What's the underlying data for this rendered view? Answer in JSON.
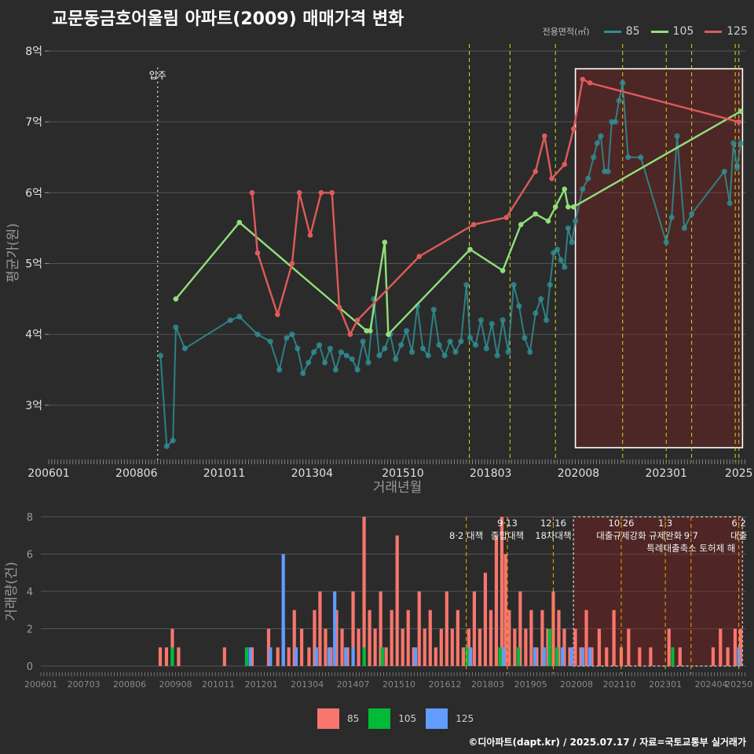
{
  "title": "교문동금호어울림 아파트(2009) 매매가격 변화",
  "legend": {
    "label": "전용면적(㎡)",
    "items": [
      {
        "name": "85",
        "color": "#2f8f93"
      },
      {
        "name": "105",
        "color": "#90e07a"
      },
      {
        "name": "125",
        "color": "#e05a5a"
      }
    ]
  },
  "bar_legend": [
    {
      "name": "85",
      "color": "#f8766d"
    },
    {
      "name": "105",
      "color": "#00ba38"
    },
    {
      "name": "125",
      "color": "#619cff"
    }
  ],
  "footer": "©디아파트(dapt.kr) / 2025.07.17 / 자료=국토교통부 실거래가",
  "chart_data": [
    {
      "type": "line",
      "title": "교문동금호어울림 아파트(2009) 매매가격 변화",
      "xlabel": "거래년월",
      "ylabel": "평균가(원)",
      "xlim": [
        2006.0,
        2025.2
      ],
      "ylim": [
        2.2,
        8.1
      ],
      "xticks": [
        {
          "value": 2006.0,
          "label": "200601"
        },
        {
          "value": 2008.417,
          "label": "200806"
        },
        {
          "value": 2010.833,
          "label": "201011"
        },
        {
          "value": 2013.25,
          "label": "201304"
        },
        {
          "value": 2015.75,
          "label": "201510"
        },
        {
          "value": 2018.167,
          "label": "201803"
        },
        {
          "value": 2020.583,
          "label": "202008"
        },
        {
          "value": 2023.0,
          "label": "202301"
        },
        {
          "value": 2025.0,
          "label": "2025"
        }
      ],
      "yticks": [
        {
          "value": 3,
          "label": "3억"
        },
        {
          "value": 4,
          "label": "4억"
        },
        {
          "value": 5,
          "label": "5억"
        },
        {
          "value": 6,
          "label": "6억"
        },
        {
          "value": 7,
          "label": "7억"
        },
        {
          "value": 8,
          "label": "8억"
        }
      ],
      "event_line": {
        "x": 2009.0,
        "label": "입주"
      },
      "policy_lines": [
        2017.58,
        2018.7,
        2019.95,
        2021.8,
        2023.0,
        2023.7,
        2024.9,
        2025.0
      ],
      "highlight": {
        "x_start": 2020.5,
        "x_end": 2025.1,
        "y_start": 2.4,
        "y_end": 7.75
      },
      "series": [
        {
          "name": "85",
          "color": "#2f8f93",
          "x": [
            2009.08,
            2009.25,
            2009.42,
            2009.5,
            2009.75,
            2011.0,
            2011.25,
            2011.75,
            2012.1,
            2012.35,
            2012.55,
            2012.7,
            2012.85,
            2013.0,
            2013.15,
            2013.3,
            2013.45,
            2013.6,
            2013.75,
            2013.9,
            2014.05,
            2014.2,
            2014.35,
            2014.5,
            2014.65,
            2014.8,
            2014.95,
            2015.1,
            2015.25,
            2015.4,
            2015.55,
            2015.7,
            2015.85,
            2016.0,
            2016.15,
            2016.3,
            2016.45,
            2016.6,
            2016.75,
            2016.9,
            2017.05,
            2017.2,
            2017.35,
            2017.5,
            2017.6,
            2017.75,
            2017.9,
            2018.05,
            2018.2,
            2018.35,
            2018.5,
            2018.65,
            2018.8,
            2018.95,
            2019.1,
            2019.25,
            2019.4,
            2019.55,
            2019.7,
            2019.8,
            2019.9,
            2020.0,
            2020.1,
            2020.2,
            2020.3,
            2020.4,
            2020.5,
            2020.7,
            2020.85,
            2021.0,
            2021.1,
            2021.2,
            2021.3,
            2021.4,
            2021.5,
            2021.6,
            2021.7,
            2021.8,
            2021.95,
            2022.3,
            2023.0,
            2023.15,
            2023.3,
            2023.5,
            2023.7,
            2024.6,
            2024.75,
            2024.85,
            2024.95,
            2025.05
          ],
          "values": [
            3.7,
            2.42,
            2.5,
            4.1,
            3.8,
            4.2,
            4.25,
            4.0,
            3.9,
            3.5,
            3.95,
            4.0,
            3.8,
            3.45,
            3.6,
            3.75,
            3.85,
            3.6,
            3.8,
            3.5,
            3.75,
            3.7,
            3.65,
            3.5,
            3.9,
            3.6,
            4.5,
            3.7,
            3.8,
            4.0,
            3.65,
            3.85,
            4.05,
            3.75,
            4.4,
            3.8,
            3.7,
            4.35,
            3.85,
            3.7,
            3.9,
            3.75,
            3.9,
            4.7,
            3.95,
            3.85,
            4.2,
            3.8,
            4.15,
            3.7,
            4.2,
            3.75,
            4.7,
            4.4,
            3.95,
            3.75,
            4.3,
            4.5,
            4.2,
            4.7,
            5.15,
            5.2,
            5.05,
            4.95,
            5.5,
            5.3,
            5.6,
            6.05,
            6.2,
            6.5,
            6.7,
            6.8,
            6.3,
            6.3,
            7.0,
            7.0,
            7.3,
            7.55,
            6.5,
            6.5,
            5.3,
            5.65,
            6.8,
            5.5,
            5.7,
            6.3,
            5.85,
            6.7,
            6.35,
            6.7
          ]
        },
        {
          "name": "105",
          "color": "#90e07a",
          "x": [
            2009.5,
            2011.25,
            2014.75,
            2014.85,
            2015.25,
            2015.35,
            2017.6,
            2018.5,
            2019.0,
            2019.4,
            2019.75,
            2019.95,
            2020.2,
            2020.3,
            2020.45,
            2025.05
          ],
          "values": [
            4.5,
            5.58,
            4.05,
            4.05,
            5.3,
            4.0,
            5.2,
            4.9,
            5.55,
            5.7,
            5.6,
            5.8,
            6.05,
            5.8,
            5.8,
            7.15
          ]
        },
        {
          "name": "125",
          "color": "#e05a5a",
          "x": [
            2011.6,
            2011.75,
            2012.3,
            2012.7,
            2012.9,
            2013.2,
            2013.5,
            2013.8,
            2014.0,
            2014.3,
            2014.5,
            2016.2,
            2017.7,
            2018.6,
            2019.4,
            2019.65,
            2019.85,
            2020.2,
            2020.45,
            2020.7,
            2020.9,
            2025.0
          ],
          "values": [
            6.0,
            5.15,
            4.28,
            5.0,
            6.0,
            5.4,
            6.0,
            6.0,
            4.38,
            4.0,
            4.2,
            5.1,
            5.55,
            5.65,
            6.3,
            6.8,
            6.2,
            6.4,
            6.9,
            7.6,
            7.55,
            7.0
          ]
        }
      ]
    },
    {
      "type": "bar",
      "ylabel": "거래량(건)",
      "xlim": [
        2006.0,
        2025.2
      ],
      "ylim": [
        0,
        8
      ],
      "xticks": [
        {
          "value": 2006.0,
          "label": "200601"
        },
        {
          "value": 2007.167,
          "label": "200703"
        },
        {
          "value": 2008.417,
          "label": "200806"
        },
        {
          "value": 2009.667,
          "label": "200908"
        },
        {
          "value": 2010.833,
          "label": "201011"
        },
        {
          "value": 2012.0,
          "label": "201201"
        },
        {
          "value": 2013.25,
          "label": "201304"
        },
        {
          "value": 2014.5,
          "label": "201407"
        },
        {
          "value": 2015.75,
          "label": "201510"
        },
        {
          "value": 2017.0,
          "label": "201612"
        },
        {
          "value": 2018.167,
          "label": "201803"
        },
        {
          "value": 2019.333,
          "label": "201905"
        },
        {
          "value": 2020.583,
          "label": "202008"
        },
        {
          "value": 2021.75,
          "label": "202110"
        },
        {
          "value": 2023.0,
          "label": "202301"
        },
        {
          "value": 2024.25,
          "label": "202404"
        },
        {
          "value": 2025.0,
          "label": "20250"
        }
      ],
      "yticks": [
        0,
        2,
        4,
        6,
        8
      ],
      "policies": [
        {
          "x": 2017.58,
          "label": "8·2 대책",
          "row": 2
        },
        {
          "x": 2018.7,
          "label": "9·13",
          "row": 1
        },
        {
          "x": 2018.7,
          "label": "종합대책",
          "row": 2
        },
        {
          "x": 2019.95,
          "label": "12·16",
          "row": 1
        },
        {
          "x": 2019.95,
          "label": "18차대책",
          "row": 2
        },
        {
          "x": 2021.8,
          "label": "10·26",
          "row": 1
        },
        {
          "x": 2021.8,
          "label": "대출규제강화",
          "row": 2
        },
        {
          "x": 2023.0,
          "label": "1·3",
          "row": 1
        },
        {
          "x": 2023.0,
          "label": "규제완화",
          "row": 2
        },
        {
          "x": 2023.7,
          "label": "9·7",
          "row": 2
        },
        {
          "x": 2023.7,
          "label": "특례대출축소 토허제 해",
          "row": 3
        },
        {
          "x": 2025.0,
          "label": "6·2",
          "row": 1
        },
        {
          "x": 2025.0,
          "label": "대출",
          "row": 2
        }
      ],
      "highlight": {
        "x_start": 2020.5,
        "x_end": 2025.1
      },
      "series": [
        {
          "name": "85",
          "color": "#f8766d",
          "x": [
            2009.25,
            2009.42,
            2009.58,
            2009.75,
            2011.0,
            2011.75,
            2012.2,
            2012.45,
            2012.6,
            2012.75,
            2012.9,
            2013.1,
            2013.3,
            2013.45,
            2013.6,
            2013.75,
            2013.9,
            2014.05,
            2014.2,
            2014.35,
            2014.5,
            2014.65,
            2014.8,
            2014.95,
            2015.1,
            2015.25,
            2015.4,
            2015.55,
            2015.7,
            2015.85,
            2016.0,
            2016.15,
            2016.3,
            2016.45,
            2016.6,
            2016.75,
            2016.9,
            2017.05,
            2017.2,
            2017.35,
            2017.5,
            2017.65,
            2017.8,
            2017.95,
            2018.1,
            2018.25,
            2018.4,
            2018.55,
            2018.65,
            2018.75,
            2018.9,
            2019.05,
            2019.2,
            2019.35,
            2019.5,
            2019.65,
            2019.8,
            2019.95,
            2020.1,
            2020.25,
            2020.4,
            2020.55,
            2020.7,
            2020.85,
            2021.0,
            2021.2,
            2021.4,
            2021.6,
            2021.8,
            2022.0,
            2022.3,
            2022.6,
            2023.1,
            2023.4,
            2024.3,
            2024.5,
            2024.7,
            2024.9,
            2025.05
          ],
          "values": [
            1,
            1,
            2,
            1,
            1,
            1,
            2,
            1,
            2,
            1,
            3,
            2,
            1,
            3,
            4,
            2,
            1,
            3,
            2,
            1,
            4,
            2,
            8,
            3,
            2,
            4,
            1,
            3,
            7,
            2,
            3,
            1,
            4,
            2,
            3,
            1,
            2,
            4,
            2,
            3,
            1,
            2,
            4,
            2,
            5,
            3,
            7,
            8,
            6,
            3,
            2,
            4,
            2,
            3,
            1,
            3,
            2,
            4,
            3,
            2,
            1,
            2,
            1,
            3,
            1,
            2,
            1,
            3,
            1,
            2,
            1,
            1,
            2,
            1,
            1,
            2,
            1,
            2,
            2
          ]
        },
        {
          "name": "105",
          "color": "#00ba38",
          "x": [
            2009.58,
            2011.6,
            2014.8,
            2015.3,
            2017.6,
            2018.5,
            2019.0,
            2019.85,
            2020.05,
            2023.2
          ],
          "values": [
            1,
            1,
            1,
            1,
            1,
            1,
            1,
            2,
            1,
            1
          ]
        },
        {
          "name": "125",
          "color": "#619cff",
          "x": [
            2011.7,
            2012.25,
            2012.6,
            2012.95,
            2013.5,
            2013.85,
            2014.0,
            2014.3,
            2014.5,
            2016.2,
            2017.7,
            2018.6,
            2019.45,
            2019.7,
            2020.2,
            2020.45,
            2020.75,
            2020.95,
            2025.0
          ],
          "values": [
            1,
            1,
            6,
            1,
            1,
            1,
            4,
            1,
            1,
            1,
            1,
            1,
            1,
            1,
            1,
            1,
            1,
            1,
            1
          ]
        }
      ]
    }
  ]
}
